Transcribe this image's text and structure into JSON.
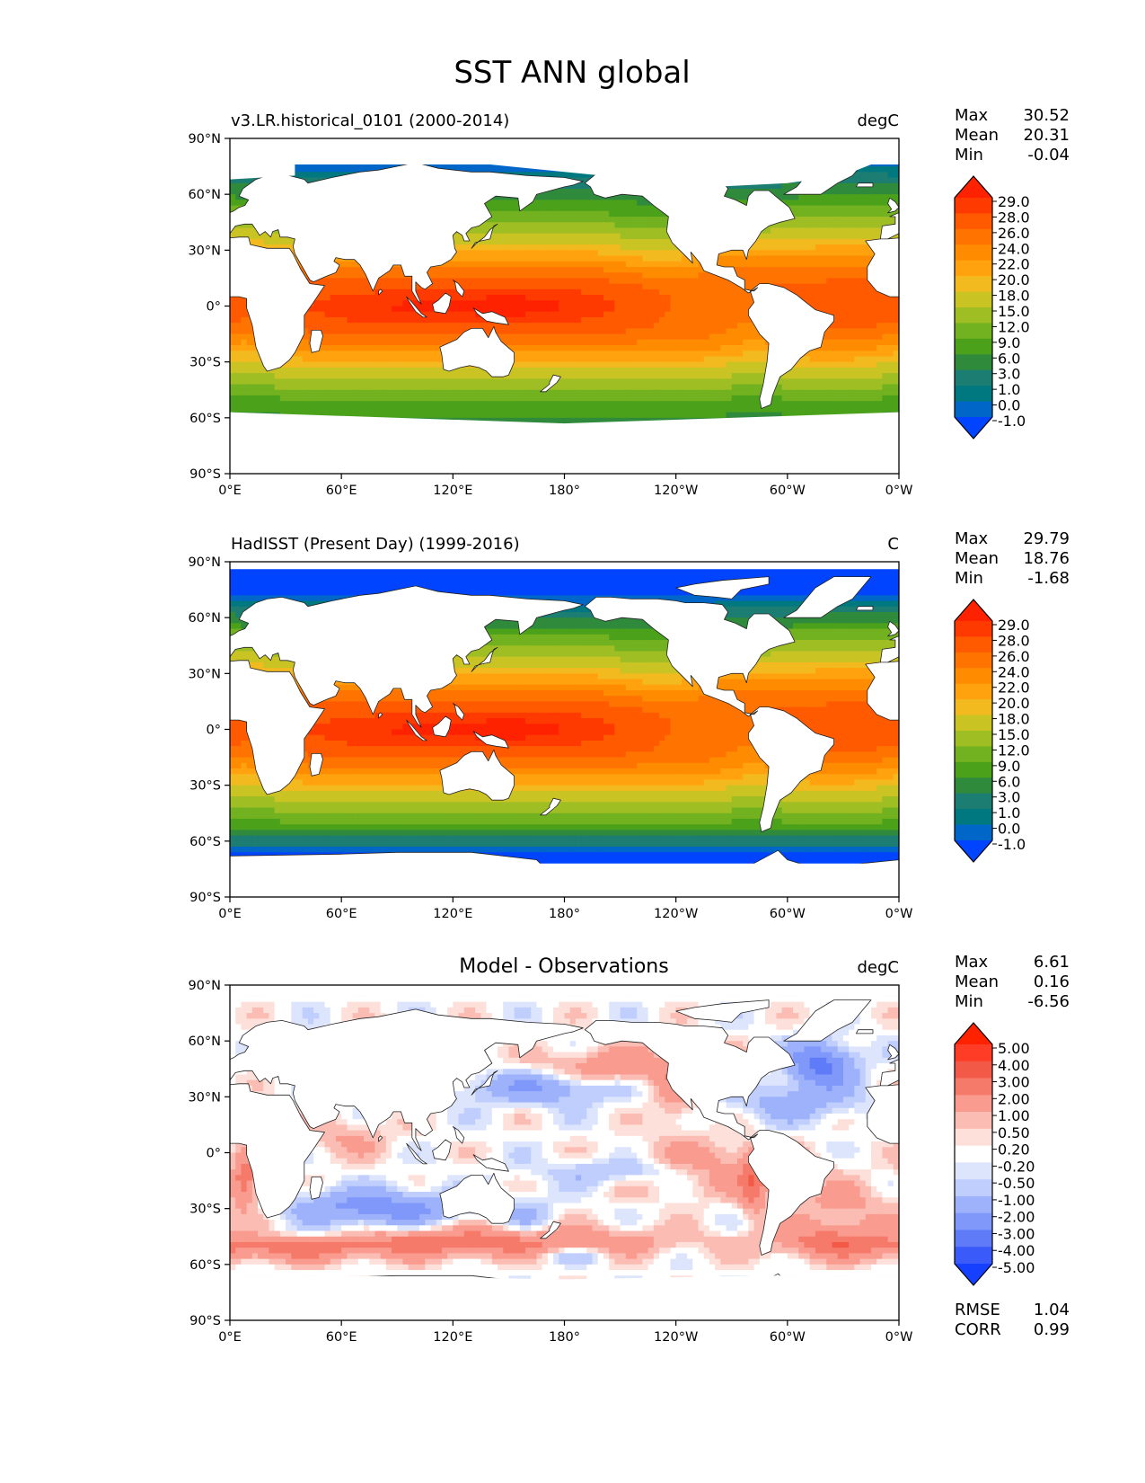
{
  "figure_title": "SST ANN global",
  "lat_ticks": [
    "90°N",
    "60°N",
    "30°N",
    "0°",
    "30°S",
    "60°S",
    "90°S"
  ],
  "lon_ticks": [
    "0°E",
    "60°E",
    "120°E",
    "180°",
    "120°W",
    "60°W",
    "0°W"
  ],
  "stat_labels": {
    "max": "Max",
    "mean": "Mean",
    "min": "Min",
    "rmse": "RMSE",
    "corr": "CORR"
  },
  "sst_colorbar": {
    "levels": [
      "29.0",
      "28.0",
      "26.0",
      "24.0",
      "22.0",
      "20.0",
      "18.0",
      "15.0",
      "12.0",
      "9.0",
      "6.0",
      "3.0",
      "1.0",
      "0.0",
      "-1.0"
    ],
    "colors": [
      "#ff2200",
      "#ff3a00",
      "#ff5a00",
      "#ff7400",
      "#ff8c00",
      "#ffa20e",
      "#f3ba1f",
      "#c9c424",
      "#9fbe24",
      "#72b11f",
      "#4ba21a",
      "#2f8a3c",
      "#1c7d73",
      "#007880",
      "#0066c8",
      "#0044ff"
    ]
  },
  "diff_colorbar": {
    "levels": [
      "5.00",
      "4.00",
      "3.00",
      "2.00",
      "1.00",
      "0.50",
      "0.20",
      "-0.20",
      "-0.50",
      "-1.00",
      "-2.00",
      "-3.00",
      "-4.00",
      "-5.00"
    ],
    "colors": [
      "#ff2200",
      "#ff3d26",
      "#f25a47",
      "#f67a6a",
      "#f99b8e",
      "#fbbdb3",
      "#fde0da",
      "#ffffff",
      "#dde5fd",
      "#bfcefc",
      "#9db2fb",
      "#7f98fa",
      "#5f7bf8",
      "#3a5af9",
      "#1540ff"
    ]
  },
  "panels": [
    {
      "id": "model",
      "left_title": "v3.LR.historical_0101 (2000-2014)",
      "center_title": "",
      "units": "degC",
      "stats": {
        "max": "30.52",
        "mean": "20.31",
        "min": "-0.04"
      },
      "colorbar": "sst",
      "field": "model"
    },
    {
      "id": "obs",
      "left_title": "HadISST (Present Day) (1999-2016)",
      "center_title": "",
      "units": "C",
      "stats": {
        "max": "29.79",
        "mean": "18.76",
        "min": "-1.68"
      },
      "colorbar": "sst",
      "field": "obs"
    },
    {
      "id": "diff",
      "left_title": "",
      "center_title": "Model - Observations",
      "units": "degC",
      "stats": {
        "max": "6.61",
        "mean": "0.16",
        "min": "-6.56",
        "rmse": "1.04",
        "corr": "0.99"
      },
      "colorbar": "diff",
      "field": "diff"
    }
  ]
}
